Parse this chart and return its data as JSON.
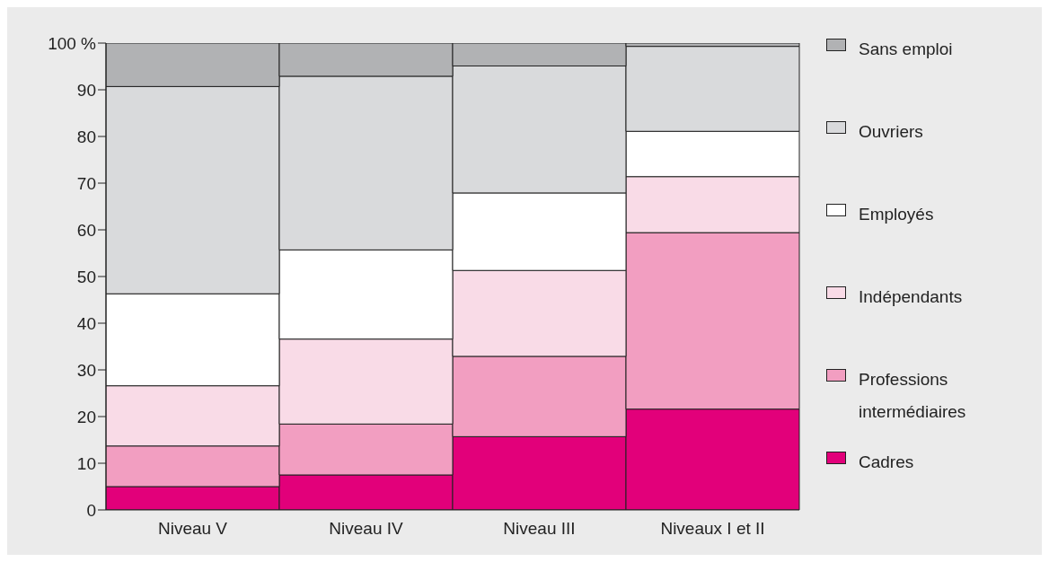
{
  "chart_data": {
    "type": "bar",
    "stacked": true,
    "categories": [
      "Niveau V",
      "Niveau IV",
      "Niveau III",
      "Niveaux I et II"
    ],
    "series": [
      {
        "name": "Cadres",
        "color": "#e2007a",
        "values": [
          5.0,
          7.5,
          15.7,
          21.6
        ]
      },
      {
        "name": "Professions intermédiaires",
        "color": "#f29ec1",
        "values": [
          8.7,
          10.9,
          17.2,
          37.8
        ]
      },
      {
        "name": "Indépendants",
        "color": "#f9dbe7",
        "values": [
          12.9,
          18.2,
          18.4,
          12.0
        ]
      },
      {
        "name": "Employés",
        "color": "#ffffff",
        "values": [
          19.7,
          19.1,
          16.6,
          9.7
        ]
      },
      {
        "name": "Ouvriers",
        "color": "#d9dadc",
        "values": [
          44.4,
          37.2,
          27.2,
          18.2
        ]
      },
      {
        "name": "Sans emploi",
        "color": "#b1b2b4",
        "values": [
          9.3,
          7.1,
          4.9,
          0.7
        ]
      }
    ],
    "ylim": [
      0,
      100
    ],
    "yticks": [
      0,
      10,
      20,
      30,
      40,
      50,
      60,
      70,
      80,
      90,
      {
        "value": 100,
        "label": "100 %"
      }
    ],
    "grid": false,
    "legend": "right"
  }
}
